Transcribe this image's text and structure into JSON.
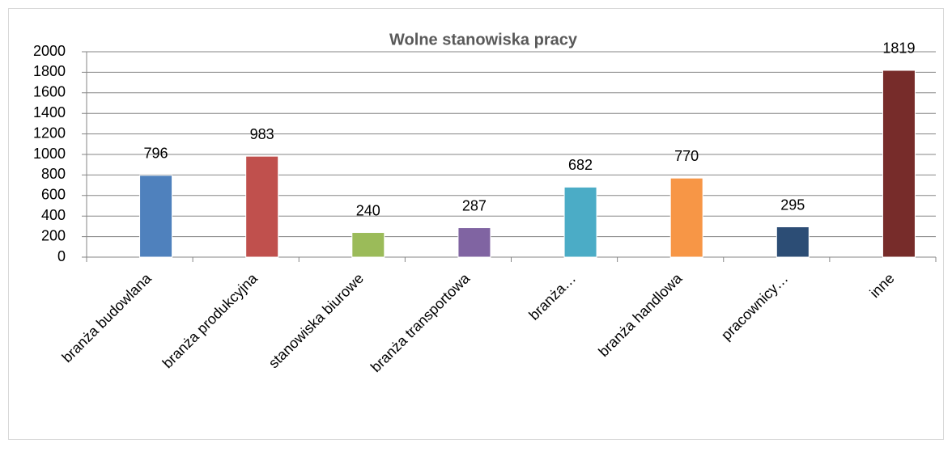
{
  "chart_data": {
    "type": "bar",
    "title": "Wolne stanowiska pracy",
    "categories": [
      "branża budowlana",
      "branża produkcyjna",
      "stanowiska biurowe",
      "branża transportowa",
      "branża…",
      "branża handlowa",
      "pracownicy…",
      "inne"
    ],
    "values": [
      796,
      983,
      240,
      287,
      682,
      770,
      295,
      1819
    ],
    "colors": [
      "#4f81bd",
      "#c0504d",
      "#9bbb59",
      "#8064a2",
      "#4bacc6",
      "#f79646",
      "#2c4d75",
      "#772c2a"
    ],
    "ylim": [
      0,
      2000
    ],
    "yticks": [
      0,
      200,
      400,
      600,
      800,
      1000,
      1200,
      1400,
      1600,
      1800,
      2000
    ],
    "grid": true
  }
}
